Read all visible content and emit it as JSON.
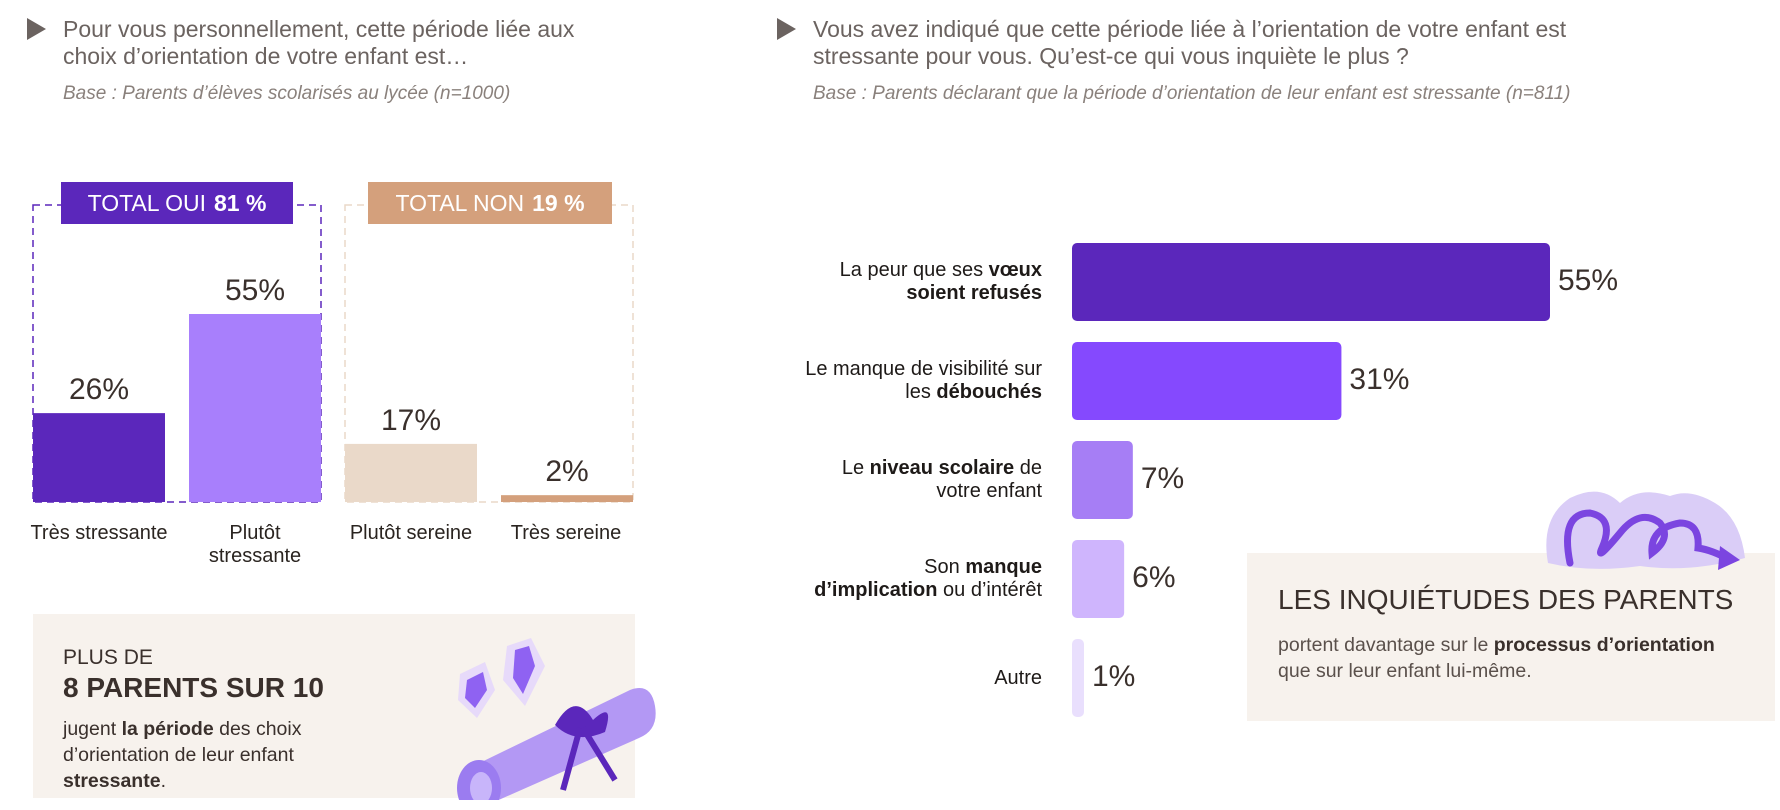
{
  "left": {
    "question": "Pour vous personnellement, cette période liée aux choix d’orientation de votre enfant est…",
    "base": "Base : Parents d’élèves scolarisés au lycée (n=1000)",
    "badge_yes_label": "TOTAL OUI",
    "badge_yes_value": "81 %",
    "badge_no_label": "TOTAL NON",
    "badge_no_value": "19 %"
  },
  "right": {
    "question": "Vous avez indiqué que cette période liée à l’orientation de votre enfant est stressante pour vous. Qu’est-ce qui vous inquiète le plus ?",
    "base": "Base : Parents déclarant que la période d’orientation de leur enfant est stressante (n=811)"
  },
  "card_left": {
    "small": "PLUS DE",
    "big": "8 PARENTS SUR 10",
    "t1": "jugent ",
    "t2": "la période",
    "t3": " des choix d’orientation de leur enfant ",
    "t4": "stressante",
    "t5": "."
  },
  "card_right": {
    "title": "LES INQUIÉTUDES DES PARENTS",
    "t1": "portent davantage sur le ",
    "t2": "processus d’orientation",
    "t3": " que sur leur enfant lui-même."
  },
  "chart_data": [
    {
      "type": "bar",
      "categories": [
        "Très stressante",
        "Plutôt stressante",
        "Plutôt sereine",
        "Très sereine"
      ],
      "values": [
        26,
        55,
        17,
        2
      ],
      "value_labels": [
        "26%",
        "55%",
        "17%",
        "2%"
      ],
      "colors": [
        "#5b27bb",
        "#a87ffc",
        "#ead9c9",
        "#d4a07c"
      ],
      "ylim": [
        0,
        55
      ]
    },
    {
      "type": "bar",
      "orientation": "horizontal",
      "categories": [
        "La peur que ses vœux soient refusés",
        "Le manque de visibilité sur les débouchés",
        "Le niveau scolaire de votre enfant",
        "Son manque d’implication ou d’intérêt",
        "Autre"
      ],
      "labels": [
        [
          [
            "La peur que ses ",
            false
          ],
          [
            "vœux",
            true
          ],
          [
            "soient refusés",
            true
          ]
        ],
        [
          [
            "Le manque de visibilité sur",
            false
          ],
          [
            "les ",
            false
          ],
          [
            "débouchés",
            true
          ]
        ],
        [
          [
            "Le ",
            false
          ],
          [
            "niveau scolaire",
            true
          ],
          [
            " de",
            false
          ],
          [
            "votre enfant",
            false
          ]
        ],
        [
          [
            "Son ",
            false
          ],
          [
            "manque",
            true
          ],
          [
            "d’implication",
            true
          ],
          [
            " ou d’intérêt",
            false
          ]
        ],
        [
          [
            "Autre",
            false
          ]
        ]
      ],
      "values": [
        55,
        31,
        7,
        6,
        1
      ],
      "value_labels": [
        "55%",
        "31%",
        "7%",
        "6%",
        "1%"
      ],
      "colors": [
        "#5b27bb",
        "#8549fe",
        "#a67ef5",
        "#cfb5fd",
        "#e9dffd"
      ],
      "xlim": [
        0,
        55
      ]
    }
  ]
}
